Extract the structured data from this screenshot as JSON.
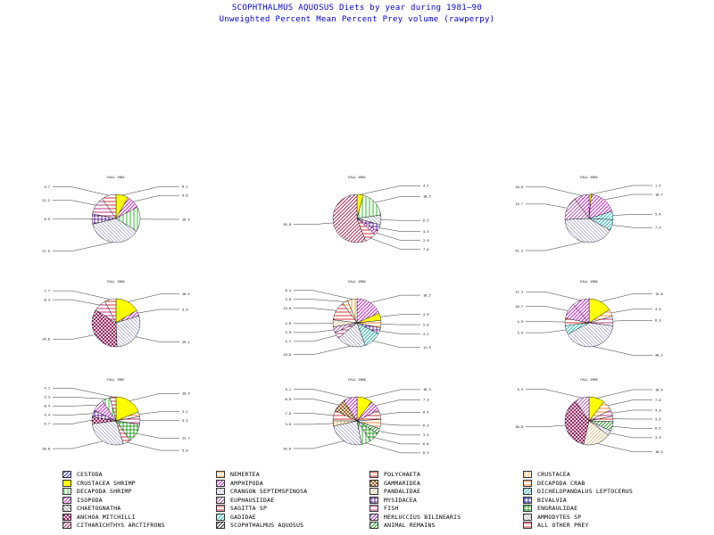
{
  "title": "SCOPHTHALMUS AQUOSUS Diets by year during  1981—90",
  "subtitle": "Unweighted Percent Mean Percent Prey  volume (rawperpy)",
  "legend": [
    {
      "name": "CESTODA",
      "color": "#0000cc",
      "pattern": "diag"
    },
    {
      "name": "CRUSTACEA  SHRIMP",
      "color": "#ffff00",
      "pattern": "solid"
    },
    {
      "name": "DECAPODA  SHRIMP",
      "color": "#00aa00",
      "pattern": "vert"
    },
    {
      "name": "ISOPODA",
      "color": "#cc00cc",
      "pattern": "diag"
    },
    {
      "name": "CHAETOGNATHA",
      "color": "#777777",
      "pattern": "diag2"
    },
    {
      "name": "ANCHOA  MITCHILLI",
      "color": "#880044",
      "pattern": "cross"
    },
    {
      "name": "CITHARICHTHYS  ARCTIFRONS",
      "color": "#aa0033",
      "pattern": "diag"
    },
    {
      "name": "NEMERTEA",
      "color": "#ff8800",
      "pattern": "horiz"
    },
    {
      "name": "AMPHIPODA",
      "color": "#cc00cc",
      "pattern": "diag"
    },
    {
      "name": "CRANGON  SEPTEMSPINOSA",
      "color": "#aaaacc",
      "pattern": "diag2"
    },
    {
      "name": "EUPHAUSIIDAE",
      "color": "#aa44aa",
      "pattern": "diag"
    },
    {
      "name": "SAGITTA  SP",
      "color": "#aa0000",
      "pattern": "horiz"
    },
    {
      "name": "GADIDAE",
      "color": "#00cccc",
      "pattern": "diag"
    },
    {
      "name": "SCOPHTHALMUS  AQUOSUS",
      "color": "#000000",
      "pattern": "diag"
    },
    {
      "name": "POLYCHAETA",
      "color": "#aa0000",
      "pattern": "horiz"
    },
    {
      "name": "GAMMARIDEA",
      "color": "#884400",
      "pattern": "cross"
    },
    {
      "name": "PANDALIDAE",
      "color": "#ddbb88",
      "pattern": "diag"
    },
    {
      "name": "MYSIDACEA",
      "color": "#440088",
      "pattern": "grid"
    },
    {
      "name": "FISH",
      "color": "#aa0066",
      "pattern": "horiz"
    },
    {
      "name": "MERLUCCIUS  BILINEARIS",
      "color": "#8800aa",
      "pattern": "diag"
    },
    {
      "name": "ANIMAL  REMAINS",
      "color": "#008800",
      "pattern": "diag"
    },
    {
      "name": "CRUSTACEA",
      "color": "#ff8800",
      "pattern": "vert"
    },
    {
      "name": "DECAPODA  CRAB",
      "color": "#ff6600",
      "pattern": "horiz"
    },
    {
      "name": "DICHELOPANDALUS  LEPTOCERUS",
      "color": "#00aaaa",
      "pattern": "diag"
    },
    {
      "name": "BIVALVIA",
      "color": "#000088",
      "pattern": "grid"
    },
    {
      "name": "ENGRAULIDAE",
      "color": "#008800",
      "pattern": "grid"
    },
    {
      "name": "AMMODYTES  SP",
      "color": "#aaaaaa",
      "pattern": "diag2"
    },
    {
      "name": "ALL  OTHER  PREY",
      "color": "#cc0000",
      "pattern": "horiz"
    }
  ],
  "chart_data": [
    {
      "type": "pie",
      "title": "FALL 1981",
      "slices": [
        {
          "category": "CRUSTACEA  SHRIMP",
          "value": 8.2,
          "color": "#ffff00",
          "pattern": "solid"
        },
        {
          "category": "AMPHIPODA",
          "value": 9.0,
          "color": "#cc00cc",
          "pattern": "diag"
        },
        {
          "category": "DECAPODA  SHRIMP",
          "value": 16.5,
          "color": "#00aa00",
          "pattern": "vert"
        },
        {
          "category": "CRANGON  SEPTEMSPINOSA",
          "value": 37.5,
          "color": "#aaaacc",
          "pattern": "diag2"
        },
        {
          "category": "MYSIDACEA",
          "value": 6.9,
          "color": "#440088",
          "pattern": "grid"
        },
        {
          "category": "FISH",
          "value": 12.2,
          "color": "#aa0066",
          "pattern": "horiz"
        },
        {
          "category": "ALL  OTHER  PREY",
          "value": 9.7,
          "color": "#cc0000",
          "pattern": "horiz"
        }
      ]
    },
    {
      "type": "pie",
      "title": "FALL 1982",
      "slices": [
        {
          "category": "CRUSTACEA  SHRIMP",
          "value": 4.2,
          "color": "#ffff00",
          "pattern": "solid"
        },
        {
          "category": "DECAPODA  SHRIMP",
          "value": 18.5,
          "color": "#00aa00",
          "pattern": "vert"
        },
        {
          "category": "CRANGON  SEPTEMSPINOSA",
          "value": 6.5,
          "color": "#aaaacc",
          "pattern": "diag2"
        },
        {
          "category": "MYSIDACEA",
          "value": 4.5,
          "color": "#440088",
          "pattern": "grid"
        },
        {
          "category": "AMPHIPODA",
          "value": 2.9,
          "color": "#cc00cc",
          "pattern": "diag"
        },
        {
          "category": "ALL  OTHER  PREY",
          "value": 7.6,
          "color": "#cc0000",
          "pattern": "horiz"
        },
        {
          "category": "CITHARICHTHYS  ARCTIFRONS",
          "value": 55.8,
          "color": "#aa0033",
          "pattern": "diag"
        }
      ]
    },
    {
      "type": "pie",
      "title": "FALL 1983",
      "slices": [
        {
          "category": "CRUSTACEA  SHRIMP",
          "value": 1.5,
          "color": "#ffff00",
          "pattern": "solid"
        },
        {
          "category": "AMPHIPODA",
          "value": 18.7,
          "color": "#cc00cc",
          "pattern": "diag"
        },
        {
          "category": "GADIDAE",
          "value": 5.6,
          "color": "#00cccc",
          "pattern": "diag"
        },
        {
          "category": "DICHELOPANDALUS  LEPTOCERUS",
          "value": 7.3,
          "color": "#00aaaa",
          "pattern": "diag"
        },
        {
          "category": "CRANGON  SEPTEMSPINOSA",
          "value": 41.2,
          "color": "#aaaacc",
          "pattern": "diag2"
        },
        {
          "category": "EUPHAUSIIDAE",
          "value": 15.7,
          "color": "#aa44aa",
          "pattern": "diag"
        },
        {
          "category": "ISOPODA",
          "value": 10.0,
          "color": "#cc00cc",
          "pattern": "diag"
        }
      ]
    },
    {
      "type": "pie",
      "title": "FALL 1984",
      "slices": [
        {
          "category": "CRUSTACEA  SHRIMP",
          "value": 16.4,
          "color": "#ffff00",
          "pattern": "solid"
        },
        {
          "category": "AMPHIPODA",
          "value": 3.9,
          "color": "#cc00cc",
          "pattern": "diag"
        },
        {
          "category": "CRANGON  SEPTEMSPINOSA",
          "value": 29.1,
          "color": "#aaaacc",
          "pattern": "diag2"
        },
        {
          "category": "ANCHOA  MITCHILLI",
          "value": 34.6,
          "color": "#880044",
          "pattern": "cross"
        },
        {
          "category": "FISH",
          "value": 8.3,
          "color": "#aa0066",
          "pattern": "horiz"
        },
        {
          "category": "ALL  OTHER  PREY",
          "value": 7.7,
          "color": "#cc0000",
          "pattern": "horiz"
        }
      ]
    },
    {
      "type": "pie",
      "title": "FALL 1985",
      "slices": [
        {
          "category": "AMPHIPODA",
          "value": 18.5,
          "color": "#cc00cc",
          "pattern": "diag"
        },
        {
          "category": "CRUSTACEA  SHRIMP",
          "value": 4.9,
          "color": "#ffff00",
          "pattern": "solid"
        },
        {
          "category": "DECAPODA  CRAB",
          "value": 5.0,
          "color": "#ff6600",
          "pattern": "horiz"
        },
        {
          "category": "MYSIDACEA",
          "value": 4.2,
          "color": "#440088",
          "pattern": "grid"
        },
        {
          "category": "DICHELOPANDALUS  LEPTOCERUS",
          "value": 11.9,
          "color": "#00aaaa",
          "pattern": "diag"
        },
        {
          "category": "CRANGON  SEPTEMSPINOSA",
          "value": 19.6,
          "color": "#aaaacc",
          "pattern": "diag2"
        },
        {
          "category": "FISH",
          "value": 4.2,
          "color": "#aa0066",
          "pattern": "horiz"
        },
        {
          "category": "EUPHAUSIIDAE",
          "value": 3.9,
          "color": "#aa44aa",
          "pattern": "diag"
        },
        {
          "category": "PANDALIDAE",
          "value": 4.8,
          "color": "#ddbb88",
          "pattern": "diag"
        },
        {
          "category": "ALL  OTHER  PREY",
          "value": 13.0,
          "color": "#cc0000",
          "pattern": "horiz"
        },
        {
          "category": "NEMERTEA",
          "value": 3.6,
          "color": "#ff8800",
          "pattern": "horiz"
        },
        {
          "category": "CRUSTACEA",
          "value": 6.4,
          "color": "#ff8800",
          "pattern": "vert"
        }
      ]
    },
    {
      "type": "pie",
      "title": "FALL 1986",
      "slices": [
        {
          "category": "CRUSTACEA  SHRIMP",
          "value": 15.8,
          "color": "#ffff00",
          "pattern": "solid"
        },
        {
          "category": "DECAPODA  CRAB",
          "value": 4.9,
          "color": "#ff6600",
          "pattern": "horiz"
        },
        {
          "category": "FISH",
          "value": 6.3,
          "color": "#aa0066",
          "pattern": "horiz"
        },
        {
          "category": "CRANGON  SEPTEMSPINOSA",
          "value": 40.2,
          "color": "#aaaacc",
          "pattern": "diag2"
        },
        {
          "category": "GADIDAE",
          "value": 5.9,
          "color": "#00cccc",
          "pattern": "diag"
        },
        {
          "category": "ALL  OTHER  PREY",
          "value": 4.9,
          "color": "#cc0000",
          "pattern": "horiz"
        },
        {
          "category": "AMPHIPODA",
          "value": 10.7,
          "color": "#cc00cc",
          "pattern": "diag"
        },
        {
          "category": "ISOPODA",
          "value": 11.3,
          "color": "#cc00cc",
          "pattern": "diag"
        }
      ]
    },
    {
      "type": "pie",
      "title": "FALL 1987",
      "slices": [
        {
          "category": "CRUSTACEA  SHRIMP",
          "value": 18.9,
          "color": "#ffff00",
          "pattern": "solid"
        },
        {
          "category": "DECAPODA  CRAB",
          "value": 3.2,
          "color": "#ff6600",
          "pattern": "horiz"
        },
        {
          "category": "FISH",
          "value": 5.3,
          "color": "#aa0066",
          "pattern": "horiz"
        },
        {
          "category": "ENGRAULIDAE",
          "value": 12.7,
          "color": "#008800",
          "pattern": "grid"
        },
        {
          "category": "ALL  OTHER  PREY",
          "value": 5.0,
          "color": "#cc0000",
          "pattern": "horiz"
        },
        {
          "category": "CRANGON  SEPTEMSPINOSA",
          "value": 28.0,
          "color": "#aaaacc",
          "pattern": "diag2"
        },
        {
          "category": "ANCHOA  MITCHILLI",
          "value": 4.7,
          "color": "#880044",
          "pattern": "cross"
        },
        {
          "category": "MYSIDACEA",
          "value": 4.4,
          "color": "#440088",
          "pattern": "grid"
        },
        {
          "category": "AMPHIPODA",
          "value": 8.4,
          "color": "#cc00cc",
          "pattern": "diag"
        },
        {
          "category": "DECAPODA  SHRIMP",
          "value": 5.3,
          "color": "#00aa00",
          "pattern": "vert"
        },
        {
          "category": "POLYCHAETA",
          "value": 4.1,
          "color": "#aa0000",
          "pattern": "horiz"
        }
      ]
    },
    {
      "type": "pie",
      "title": "FALL 1988",
      "slices": [
        {
          "category": "CRUSTACEA  SHRIMP",
          "value": 10.3,
          "color": "#ffff00",
          "pattern": "solid"
        },
        {
          "category": "ISOPODA",
          "value": 7.3,
          "color": "#cc00cc",
          "pattern": "diag"
        },
        {
          "category": "POLYCHAETA",
          "value": 6.4,
          "color": "#aa0000",
          "pattern": "horiz"
        },
        {
          "category": "DECAPODA  CRAB",
          "value": 6.3,
          "color": "#ff6600",
          "pattern": "horiz"
        },
        {
          "category": "ANIMAL  REMAINS",
          "value": 3.5,
          "color": "#008800",
          "pattern": "diag"
        },
        {
          "category": "ENGRAULIDAE",
          "value": 6.8,
          "color": "#008800",
          "pattern": "grid"
        },
        {
          "category": "DECAPODA  SHRIMP",
          "value": 6.3,
          "color": "#00aa00",
          "pattern": "vert"
        },
        {
          "category": "CRANGON  SEPTEMSPINOSA",
          "value": 24.6,
          "color": "#aaaacc",
          "pattern": "diag2"
        },
        {
          "category": "CRUSTACEA",
          "value": 3.6,
          "color": "#ff8800",
          "pattern": "vert"
        },
        {
          "category": "ALL  OTHER  PREY",
          "value": 7.0,
          "color": "#cc0000",
          "pattern": "horiz"
        },
        {
          "category": "GAMMARIDEA",
          "value": 8.8,
          "color": "#884400",
          "pattern": "cross"
        },
        {
          "category": "AMPHIPODA",
          "value": 9.1,
          "color": "#cc00cc",
          "pattern": "diag"
        }
      ]
    },
    {
      "type": "pie",
      "title": "FALL 1989",
      "slices": [
        {
          "category": "CRUSTACEA  SHRIMP",
          "value": 10.6,
          "color": "#ffff00",
          "pattern": "solid"
        },
        {
          "category": "DECAPODA  CRAB",
          "value": 7.0,
          "color": "#ff6600",
          "pattern": "horiz"
        },
        {
          "category": "FISH",
          "value": 4.3,
          "color": "#aa0066",
          "pattern": "horiz"
        },
        {
          "category": "ALL  OTHER  PREY",
          "value": 3.5,
          "color": "#cc0000",
          "pattern": "horiz"
        },
        {
          "category": "ANIMAL  REMAINS",
          "value": 6.5,
          "color": "#008800",
          "pattern": "diag"
        },
        {
          "category": "CRANGON  SEPTEMSPINOSA",
          "value": 3.3,
          "color": "#aaaacc",
          "pattern": "diag2"
        },
        {
          "category": "PANDALIDAE",
          "value": 18.5,
          "color": "#ddbb88",
          "pattern": "diag"
        },
        {
          "category": "ANCHOA  MITCHILLI",
          "value": 36.8,
          "color": "#880044",
          "pattern": "cross"
        },
        {
          "category": "EUPHAUSIIDAE",
          "value": 9.5,
          "color": "#aa44aa",
          "pattern": "diag"
        }
      ]
    }
  ]
}
